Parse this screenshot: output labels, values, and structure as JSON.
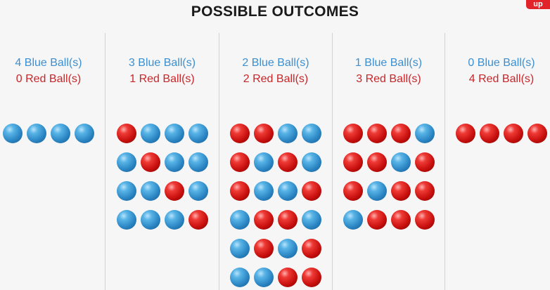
{
  "title": "POSSIBLE OUTCOMES",
  "logo_text": "up",
  "colors": {
    "blue": "#3d8fd0",
    "red": "#c8262a"
  },
  "columns": [
    {
      "blue_label": "4 Blue Ball(s)",
      "red_label": "0 Red Ball(s)",
      "rows": [
        [
          "B",
          "B",
          "B",
          "B"
        ]
      ]
    },
    {
      "blue_label": "3 Blue Ball(s)",
      "red_label": "1 Red Ball(s)",
      "rows": [
        [
          "R",
          "B",
          "B",
          "B"
        ],
        [
          "B",
          "R",
          "B",
          "B"
        ],
        [
          "B",
          "B",
          "R",
          "B"
        ],
        [
          "B",
          "B",
          "B",
          "R"
        ]
      ]
    },
    {
      "blue_label": "2 Blue Ball(s)",
      "red_label": "2 Red Ball(s)",
      "rows": [
        [
          "R",
          "R",
          "B",
          "B"
        ],
        [
          "R",
          "B",
          "R",
          "B"
        ],
        [
          "R",
          "B",
          "B",
          "R"
        ],
        [
          "B",
          "R",
          "R",
          "B"
        ],
        [
          "B",
          "R",
          "B",
          "R"
        ],
        [
          "B",
          "B",
          "R",
          "R"
        ]
      ]
    },
    {
      "blue_label": "1 Blue Ball(s)",
      "red_label": "3 Red Ball(s)",
      "rows": [
        [
          "R",
          "R",
          "R",
          "B"
        ],
        [
          "R",
          "R",
          "B",
          "R"
        ],
        [
          "R",
          "B",
          "R",
          "R"
        ],
        [
          "B",
          "R",
          "R",
          "R"
        ]
      ]
    },
    {
      "blue_label": "0 Blue Ball(s)",
      "red_label": "4 Red Ball(s)",
      "rows": [
        [
          "R",
          "R",
          "R",
          "R"
        ]
      ]
    }
  ]
}
